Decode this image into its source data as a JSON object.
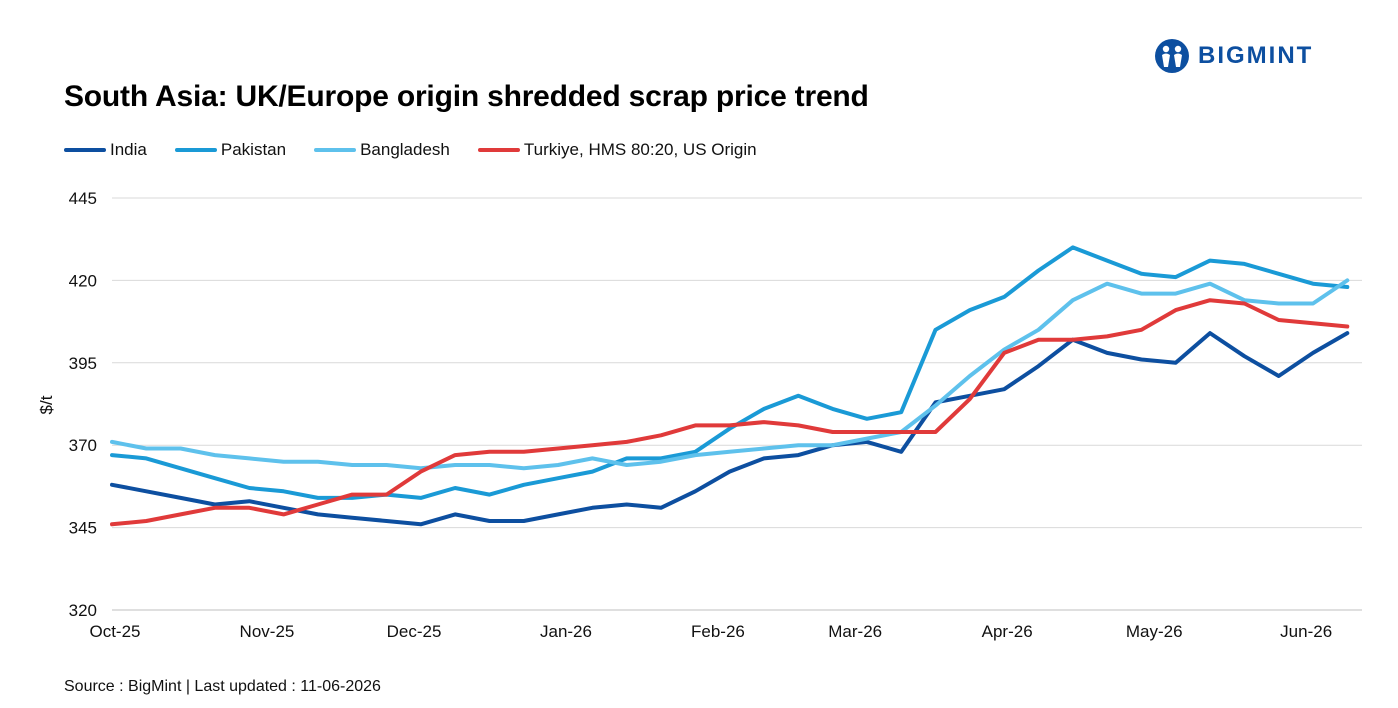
{
  "header": {
    "title": "South Asia: UK/Europe origin shredded scrap price trend",
    "logo_text": "BIGMINT"
  },
  "footer": {
    "source": "Source : BigMint | Last updated : 11-06-2026"
  },
  "colors": {
    "india": "#0d4fa0",
    "pakistan": "#1a9ad6",
    "bangladesh": "#5ec1ec",
    "turkiye": "#e03a3a",
    "grid": "#d9d9d9",
    "brand": "#0d4fa0"
  },
  "chart_data": {
    "type": "line",
    "title": "South Asia: UK/Europe origin shredded scrap price trend",
    "xlabel": "",
    "ylabel": "$/t",
    "ylim": [
      320,
      445
    ],
    "yticks": [
      "445",
      "420",
      "395",
      "370",
      "345",
      "320"
    ],
    "xticks": [
      "Oct-25",
      "Nov-25",
      "Dec-25",
      "Jan-26",
      "Feb-26",
      "Mar-26",
      "Apr-26",
      "May-26",
      "Jun-26"
    ],
    "grid": "horizontal",
    "legend_position": "top-left",
    "x": [
      "2025-10-01",
      "2025-10-08",
      "2025-10-15",
      "2025-10-22",
      "2025-10-29",
      "2025-11-05",
      "2025-11-12",
      "2025-11-19",
      "2025-11-26",
      "2025-12-03",
      "2025-12-10",
      "2025-12-17",
      "2025-12-24",
      "2025-12-31",
      "2026-01-07",
      "2026-01-14",
      "2026-01-21",
      "2026-01-28",
      "2026-02-04",
      "2026-02-11",
      "2026-02-18",
      "2026-02-25",
      "2026-03-04",
      "2026-03-11",
      "2026-03-18",
      "2026-03-25",
      "2026-04-01",
      "2026-04-08",
      "2026-04-15",
      "2026-04-22",
      "2026-04-29",
      "2026-05-06",
      "2026-05-13",
      "2026-05-20",
      "2026-05-27",
      "2026-06-03",
      "2026-06-10"
    ],
    "series": [
      {
        "name": "India",
        "values": [
          358,
          356,
          354,
          352,
          353,
          351,
          349,
          348,
          347,
          346,
          349,
          347,
          347,
          349,
          351,
          352,
          351,
          356,
          362,
          366,
          367,
          370,
          371,
          368,
          383,
          385,
          387,
          394,
          402,
          398,
          396,
          395,
          404,
          397,
          391,
          398,
          404
        ]
      },
      {
        "name": "Pakistan",
        "values": [
          367,
          366,
          363,
          360,
          357,
          356,
          354,
          354,
          355,
          354,
          357,
          355,
          358,
          360,
          362,
          366,
          366,
          368,
          375,
          381,
          385,
          381,
          378,
          380,
          405,
          411,
          415,
          423,
          430,
          426,
          422,
          421,
          426,
          425,
          422,
          419,
          418
        ]
      },
      {
        "name": "Bangladesh",
        "values": [
          371,
          369,
          369,
          367,
          366,
          365,
          365,
          364,
          364,
          363,
          364,
          364,
          363,
          364,
          366,
          364,
          365,
          367,
          368,
          369,
          370,
          370,
          372,
          374,
          382,
          391,
          399,
          405,
          414,
          419,
          416,
          416,
          419,
          414,
          413,
          413,
          420
        ]
      },
      {
        "name": "Turkiye, HMS 80:20, US Origin",
        "values": [
          346,
          347,
          349,
          351,
          351,
          349,
          352,
          355,
          355,
          362,
          367,
          368,
          368,
          369,
          370,
          371,
          373,
          376,
          376,
          377,
          376,
          374,
          374,
          374,
          374,
          384,
          398,
          402,
          402,
          403,
          405,
          411,
          414,
          413,
          408,
          407,
          406
        ]
      }
    ]
  }
}
